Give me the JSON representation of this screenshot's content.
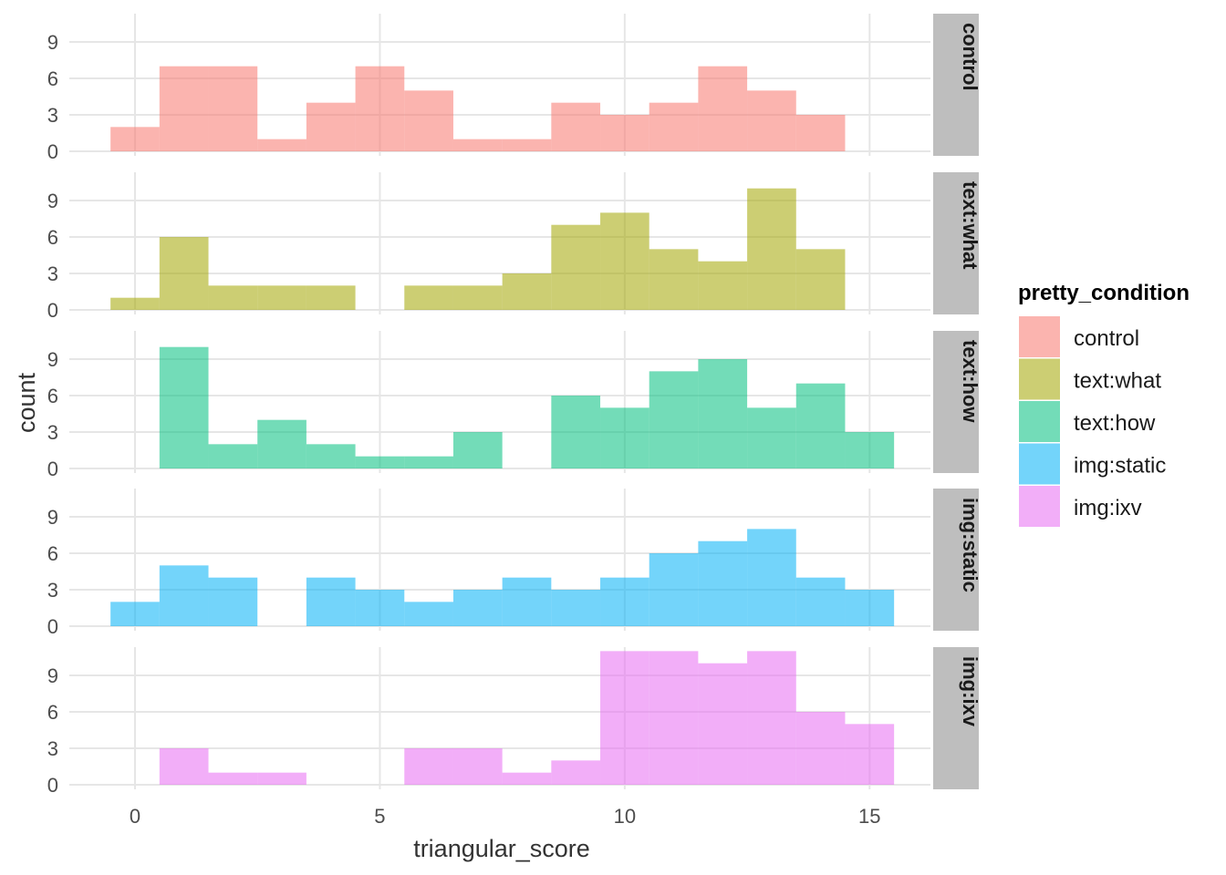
{
  "chart_data": {
    "type": "bar",
    "subtype": "faceted histogram",
    "xlabel": "triangular_score",
    "ylabel": "count",
    "xlim": [
      -1.4,
      16.3
    ],
    "ylim": [
      0,
      11
    ],
    "x_ticks": [
      "0",
      "5",
      "10",
      "15"
    ],
    "y_ticks": [
      "0",
      "3",
      "6",
      "9"
    ],
    "bin_centers": [
      0,
      1,
      2,
      3,
      4,
      5,
      6,
      7,
      8,
      9,
      10,
      11,
      12,
      13,
      14,
      15
    ],
    "bin_width": 1,
    "grid": true,
    "legend": {
      "title": "pretty_condition",
      "position": "right",
      "items": [
        "control",
        "text:what",
        "text:how",
        "img:static",
        "img:ixv"
      ]
    },
    "series": [
      {
        "name": "control",
        "color": "#F8766D",
        "values": [
          2,
          7,
          7,
          1,
          4,
          7,
          5,
          1,
          1,
          4,
          3,
          4,
          7,
          5,
          3,
          0
        ]
      },
      {
        "name": "text:what",
        "color": "#A3A500",
        "values": [
          1,
          6,
          2,
          2,
          2,
          0,
          2,
          2,
          3,
          7,
          8,
          5,
          4,
          10,
          5,
          0
        ]
      },
      {
        "name": "text:how",
        "color": "#00BF7D",
        "values": [
          0,
          10,
          2,
          4,
          2,
          1,
          1,
          3,
          0,
          6,
          5,
          8,
          9,
          5,
          7,
          3
        ]
      },
      {
        "name": "img:static",
        "color": "#00B0F6",
        "values": [
          2,
          5,
          4,
          0,
          4,
          3,
          2,
          3,
          4,
          3,
          4,
          6,
          7,
          8,
          4,
          3
        ]
      },
      {
        "name": "img:ixv",
        "color": "#E76BF3",
        "values": [
          0,
          3,
          1,
          1,
          0,
          0,
          3,
          3,
          1,
          2,
          11,
          11,
          10,
          11,
          6,
          5
        ]
      }
    ]
  }
}
